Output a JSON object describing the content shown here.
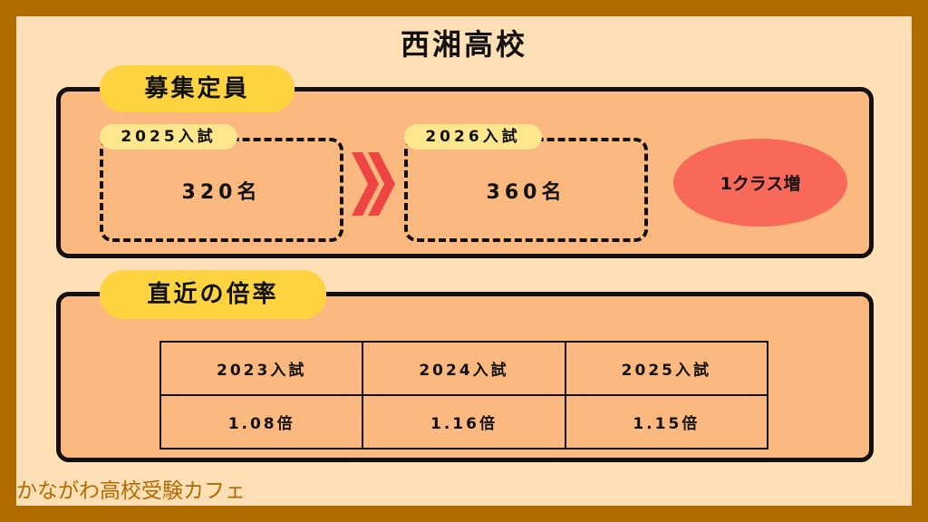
{
  "title": "西湘高校",
  "capacity": {
    "label": "募集定員",
    "before": {
      "year": "2025入試",
      "value": "320名"
    },
    "after": {
      "year": "2026入試",
      "value": "360名"
    },
    "change": "1クラス増"
  },
  "ratio": {
    "label": "直近の倍率",
    "headers": [
      "2023入試",
      "2024入試",
      "2025入試"
    ],
    "values": [
      "1.08倍",
      "1.16倍",
      "1.15倍"
    ]
  },
  "footer": "かながわ高校受験カフェ",
  "colors": {
    "border": "#B06A00",
    "background": "#FEDFB6",
    "panel": "#FBB97F",
    "pill": "#FDD440",
    "accent": "#F8695A",
    "arrow": "#EE4444"
  }
}
